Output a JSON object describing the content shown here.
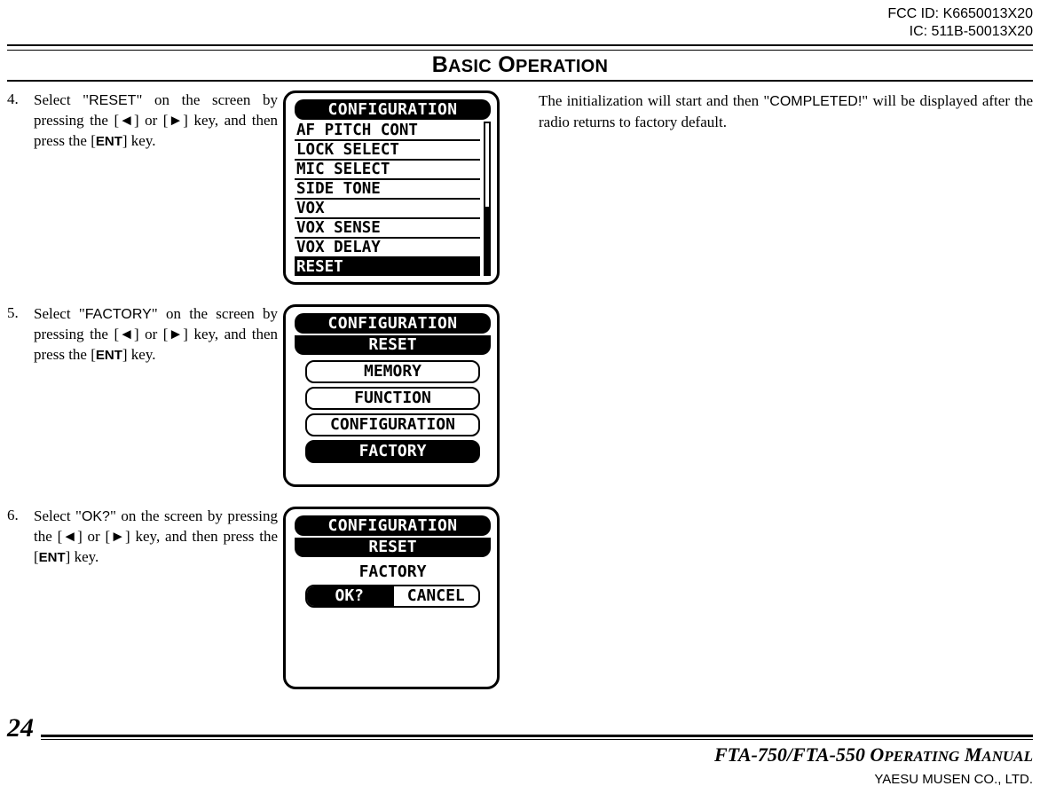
{
  "header": {
    "fcc": "FCC ID: K6650013X20",
    "ic": "IC: 511B-50013X20"
  },
  "chapter_title_1": "B",
  "chapter_title_1s": "ASIC",
  "chapter_title_2": " O",
  "chapter_title_2s": "PERATION",
  "steps": {
    "s4": {
      "num": "4.",
      "t1": "Select \"",
      "code1": "RESET",
      "t2": "\" on the screen by pressing the [",
      "arrow_l": "◄",
      "t3": "] or [",
      "arrow_r": "►",
      "t4": "] key, and then press the [",
      "key": "ENT",
      "t5": "] key."
    },
    "s5": {
      "num": "5.",
      "t1": "Select \"",
      "code1": "FACTORY",
      "t2": "\" on the screen by pressing the [",
      "arrow_l": "◄",
      "t3": "] or [",
      "arrow_r": "►",
      "t4": "] key, and then press the [",
      "key": "ENT",
      "t5": "] key."
    },
    "s6": {
      "num": "6.",
      "t1": "Select \"",
      "code1": "OK?",
      "t2": "\" on the screen by pressing the [",
      "arrow_l": "◄",
      "t3": "] or [",
      "arrow_r": "►",
      "t4": "] key, and then press the [",
      "key": "ENT",
      "t5": "] key."
    }
  },
  "lcd1": {
    "title": "CONFIGURATION",
    "rows": [
      "AF PITCH CONT",
      "LOCK SELECT",
      "MIC SELECT",
      "SIDE TONE",
      "VOX",
      "VOX SENSE",
      "VOX DELAY",
      "RESET"
    ],
    "selected_index": 7,
    "thumb_top_pct": 55,
    "thumb_height_pct": 45
  },
  "lcd2": {
    "title": "CONFIGURATION",
    "subtitle": "RESET",
    "options": [
      "MEMORY",
      "FUNCTION",
      "CONFIGURATION",
      "FACTORY"
    ],
    "selected_index": 3
  },
  "lcd3": {
    "title": "CONFIGURATION",
    "subtitle": "RESET",
    "plain": "FACTORY",
    "ok": "OK?",
    "cancel": "CANCEL"
  },
  "right": {
    "t1": "The initialization will start and then \"",
    "code": "COMPLETED!",
    "t2": "\" will be displayed after the radio returns to factory default."
  },
  "footer": {
    "page": "24",
    "manual": "FTA-750/FTA-550 O",
    "manual_sc": "PERATING",
    "manual2": " M",
    "manual_sc2": "ANUAL",
    "company": "YAESU MUSEN CO., LTD."
  }
}
